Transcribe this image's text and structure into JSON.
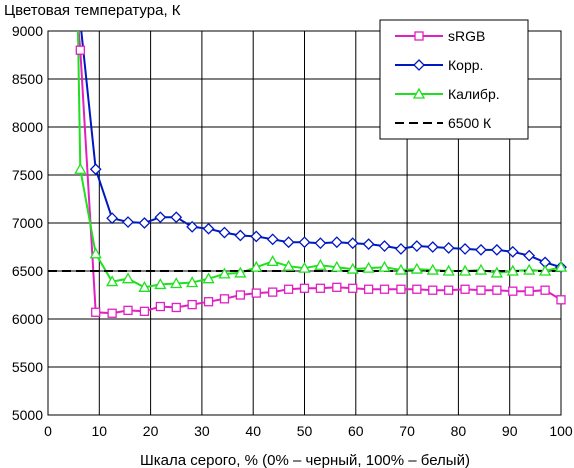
{
  "chart_data": {
    "type": "line",
    "title": "",
    "ylabel": "Цветовая температура, К",
    "xlabel": "Шкала серого, % (0% – черный, 100% – белый)",
    "xlim": [
      0,
      100
    ],
    "ylim": [
      5000,
      9000
    ],
    "xticks": [
      0,
      10,
      20,
      30,
      40,
      50,
      60,
      70,
      80,
      90,
      100
    ],
    "yticks": [
      5000,
      5500,
      6000,
      6500,
      7000,
      7500,
      8000,
      8500,
      9000
    ],
    "grid": true,
    "legend_position": "top-right",
    "series": [
      {
        "name": "sRGB",
        "color": "#e020c0",
        "marker": "square",
        "x": [
          6.3,
          9.3,
          12.5,
          15.6,
          18.8,
          21.9,
          25,
          28.1,
          31.3,
          34.4,
          37.5,
          40.6,
          43.8,
          46.9,
          50,
          53.1,
          56.3,
          59.4,
          62.5,
          65.6,
          68.8,
          71.9,
          75,
          78.1,
          81.3,
          84.4,
          87.5,
          90.6,
          93.8,
          96.9,
          100
        ],
        "y": [
          8800,
          6070,
          6060,
          6090,
          6080,
          6130,
          6120,
          6150,
          6180,
          6210,
          6250,
          6270,
          6280,
          6310,
          6320,
          6320,
          6330,
          6320,
          6310,
          6310,
          6310,
          6310,
          6300,
          6300,
          6310,
          6300,
          6300,
          6290,
          6290,
          6300,
          6200
        ]
      },
      {
        "name": "Корр.",
        "color": "#0018c0",
        "marker": "diamond",
        "x": [
          6.3,
          9.3,
          12.5,
          15.6,
          18.8,
          21.9,
          25,
          28.1,
          31.3,
          34.4,
          37.5,
          40.6,
          43.8,
          46.9,
          50,
          53.1,
          56.3,
          59.4,
          62.5,
          65.6,
          68.8,
          71.9,
          75,
          78.1,
          81.3,
          84.4,
          87.5,
          90.6,
          93.8,
          96.9,
          100
        ],
        "y": [
          9100,
          7560,
          7050,
          7010,
          7000,
          7060,
          7060,
          6960,
          6940,
          6900,
          6870,
          6860,
          6830,
          6800,
          6800,
          6790,
          6800,
          6790,
          6780,
          6760,
          6730,
          6760,
          6750,
          6740,
          6730,
          6720,
          6720,
          6700,
          6660,
          6590,
          6540
        ]
      },
      {
        "name": "Калибр.",
        "color": "#20e020",
        "marker": "triangle",
        "x": [
          6.3,
          9.3,
          12.5,
          15.6,
          18.8,
          21.9,
          25,
          28.1,
          31.3,
          34.4,
          37.5,
          40.6,
          43.8,
          46.9,
          50,
          53.1,
          56.3,
          59.4,
          62.5,
          65.6,
          68.8,
          71.9,
          75,
          78.1,
          81.3,
          84.4,
          87.5,
          90.6,
          93.8,
          96.9,
          100
        ],
        "y": [
          7560,
          6680,
          6390,
          6420,
          6330,
          6360,
          6370,
          6380,
          6420,
          6470,
          6480,
          6540,
          6600,
          6550,
          6530,
          6560,
          6540,
          6520,
          6530,
          6540,
          6510,
          6520,
          6510,
          6500,
          6500,
          6510,
          6480,
          6500,
          6510,
          6500,
          6540
        ]
      },
      {
        "name": "6500 К",
        "color": "#000000",
        "marker": "none",
        "dashed": true,
        "x": [
          0,
          100
        ],
        "y": [
          6500,
          6500
        ]
      }
    ]
  }
}
